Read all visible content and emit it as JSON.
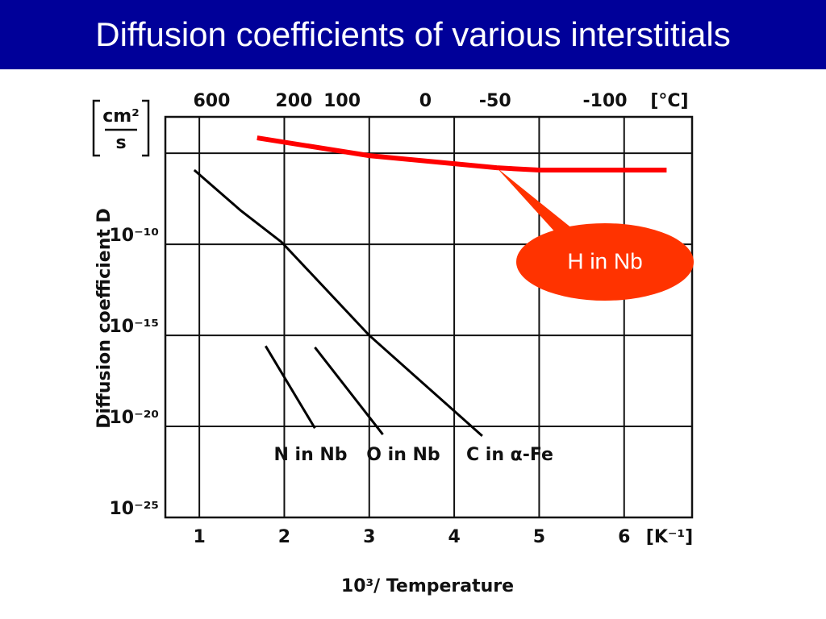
{
  "slide_title": "Diffusion coefficients of various interstitials",
  "chart_data": {
    "type": "line",
    "xlabel": "10³/ Temperature",
    "x_unit": "[K⁻¹]",
    "ylabel": "Diffusion coefficient  D",
    "y_unit": {
      "numerator": "cm²",
      "denominator": "s"
    },
    "yscale": "log",
    "grid": true,
    "xlim": [
      0.6,
      6.8
    ],
    "xticks": [
      1,
      2,
      3,
      4,
      5,
      6
    ],
    "ylim": [
      1e-25,
      0.001
    ],
    "yticks": [
      {
        "value": 1e-25,
        "label": "10⁻²⁵"
      },
      {
        "value": 1e-20,
        "label": "10⁻²⁰"
      },
      {
        "value": 1e-15,
        "label": "10⁻¹⁵"
      },
      {
        "value": 1e-10,
        "label": "10⁻¹⁰"
      },
      {
        "value": 1e-05,
        "label": null
      }
    ],
    "top_axis": {
      "label": "[°C]",
      "ticks": [
        600,
        200,
        100,
        0,
        -50,
        -100
      ]
    },
    "series": [
      {
        "name": "H in Nb",
        "color": "#ff0000",
        "x": [
          1.68,
          3.0,
          4.5,
          5.0,
          6.5
        ],
        "values": [
          7e-05,
          7.4e-06,
          1.6e-06,
          1.2e-06,
          1.2e-06
        ]
      },
      {
        "name": "C in α-Fe",
        "color": "#000000",
        "x": [
          0.94,
          1.49,
          1.97,
          3.0,
          4.33
        ],
        "values": [
          1.2e-06,
          7e-09,
          1.3e-10,
          1e-15,
          3e-21
        ]
      },
      {
        "name": "N in Nb",
        "color": "#000000",
        "x": [
          1.78,
          2.36
        ],
        "values": [
          2.6e-16,
          8e-21
        ]
      },
      {
        "name": "O in Nb",
        "color": "#000000",
        "x": [
          2.36,
          3.16
        ],
        "values": [
          2.2e-16,
          3.6e-21
        ]
      }
    ]
  }
}
